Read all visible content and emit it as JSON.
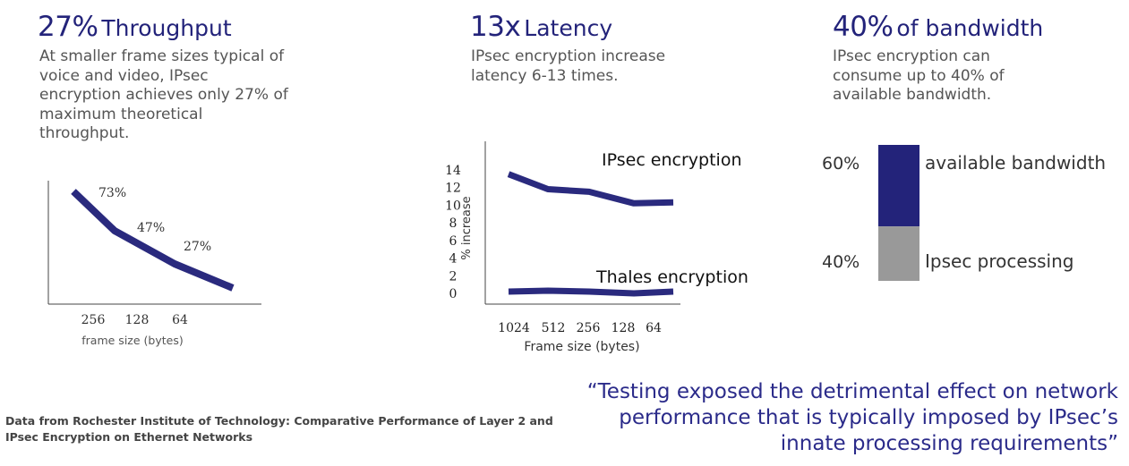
{
  "colors": {
    "accent": "#23237a",
    "line": "#2a2a7e",
    "gray": "#999999",
    "text": "#555555"
  },
  "panels": [
    {
      "big": "27%",
      "rest": "Throughput",
      "lines": [
        "At smaller frame sizes typical of",
        "voice and video, IPsec",
        "encryption achieves only 27% of",
        "maximum theoretical",
        "throughput."
      ]
    },
    {
      "big": "13x",
      "rest": "Latency",
      "lines": [
        "IPsec encryption increase",
        "latency 6-13 times."
      ]
    },
    {
      "big": "40%",
      "rest": "of bandwidth",
      "lines": [
        "IPsec encryption can",
        "consume up to 40% of",
        "available bandwidth."
      ]
    }
  ],
  "chart_data": [
    {
      "type": "line",
      "categories": [
        "256",
        "128",
        "64"
      ],
      "series": [
        {
          "values": [
            73,
            47,
            27
          ]
        }
      ],
      "data_labels": [
        "73%",
        "47%",
        "27%"
      ],
      "xlabel": "frame size (bytes)",
      "ylabel": ""
    },
    {
      "type": "line",
      "categories": [
        "1024",
        "512",
        "256",
        "128",
        "64"
      ],
      "series": [
        {
          "name": "IPsec encryption",
          "values": [
            13.5,
            11.8,
            11.5,
            10.2,
            10.3
          ]
        },
        {
          "name": "Thales encryption",
          "values": [
            0.2,
            0.3,
            0.2,
            0.0,
            0.2
          ]
        }
      ],
      "yticks": [
        "0",
        "2",
        "4",
        "6",
        "8",
        "10",
        "12",
        "14"
      ],
      "ylim": [
        0,
        16
      ],
      "xlabel": "Frame size (bytes)",
      "ylabel": "% increase"
    },
    {
      "type": "bar",
      "stacked": true,
      "segments": [
        {
          "pct_label": "60%",
          "label": "available bandwidth",
          "value": 60,
          "color": "#23237a"
        },
        {
          "pct_label": "40%",
          "label": "Ipsec processing",
          "value": 40,
          "color": "#999999"
        }
      ]
    }
  ],
  "source": {
    "lines": [
      "Data from Rochester Institute of Technology: Comparative Performance of Layer 2 and",
      "IPsec Encryption on Ethernet Networks"
    ]
  },
  "quote": {
    "lines": [
      "“Testing exposed the detrimental effect on network",
      "performance that is typically imposed by IPsec’s",
      "innate processing requirements”"
    ]
  }
}
